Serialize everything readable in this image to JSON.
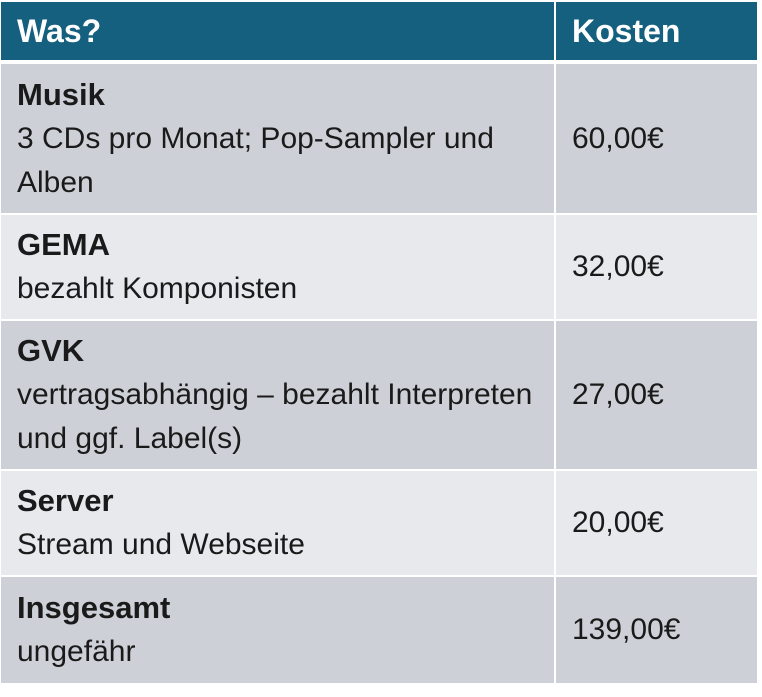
{
  "header": {
    "what_label": "Was?",
    "cost_label": "Kosten"
  },
  "rows": [
    {
      "title": "Musik",
      "description": "3 CDs pro Monat; Pop-Sampler und Alben",
      "cost": "60,00€"
    },
    {
      "title": "GEMA",
      "description": "bezahlt Komponisten",
      "cost": "32,00€"
    },
    {
      "title": "GVK",
      "description": "vertragsabhängig – bezahlt Interpreten und ggf. Label(s)",
      "cost": "27,00€"
    },
    {
      "title": "Server",
      "description": "Stream und Webseite",
      "cost": "20,00€"
    },
    {
      "title": "Insgesamt",
      "description": "ungefähr",
      "cost": "139,00€"
    }
  ],
  "colors": {
    "header_bg": "#15607f",
    "row_odd_bg": "#cdd1d7",
    "row_even_bg": "#e7e9ec"
  }
}
